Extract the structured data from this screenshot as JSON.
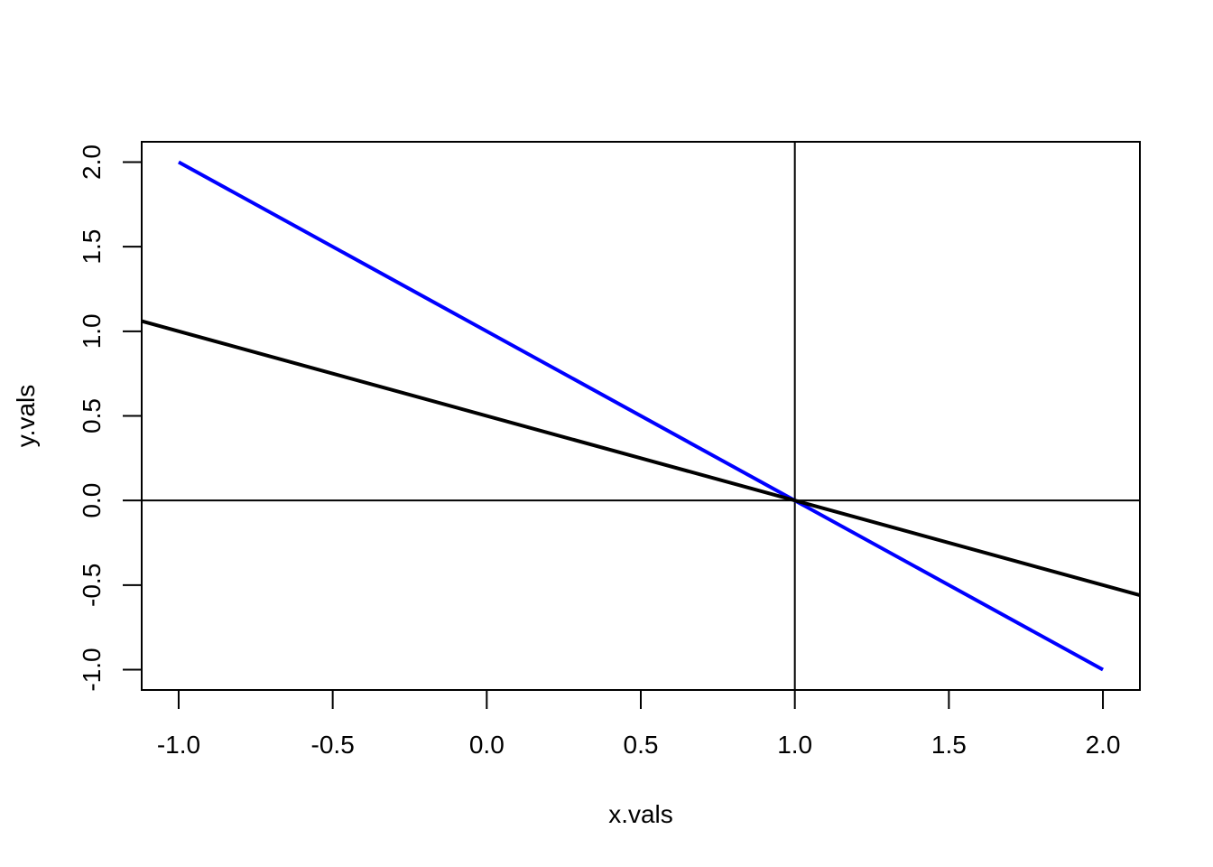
{
  "chart_data": {
    "type": "line",
    "xlabel": "x.vals",
    "ylabel": "y.vals",
    "xlim": [
      -1.12,
      2.12
    ],
    "ylim": [
      -1.12,
      2.12
    ],
    "x_ticks": [
      -1.0,
      -0.5,
      0.0,
      0.5,
      1.0,
      1.5,
      2.0
    ],
    "x_tick_labels": [
      "-1.0",
      "-0.5",
      "0.0",
      "0.5",
      "1.0",
      "1.5",
      "2.0"
    ],
    "y_ticks": [
      -1.0,
      -0.5,
      0.0,
      0.5,
      1.0,
      1.5,
      2.0
    ],
    "y_tick_labels": [
      "-1.0",
      "-0.5",
      "0.0",
      "0.5",
      "1.0",
      "1.5",
      "2.0"
    ],
    "grid": false,
    "series": [
      {
        "color": "#0000ff",
        "x": [
          -1.0,
          2.0
        ],
        "y": [
          2.0,
          -1.0
        ],
        "extends_to_frame": false
      },
      {
        "color": "#000000",
        "x": [
          -1.12,
          2.12
        ],
        "y": [
          1.06,
          -0.56
        ],
        "extends_to_frame": true
      }
    ],
    "reference_lines": [
      {
        "orientation": "vertical",
        "value": 1.0,
        "color": "#000000"
      },
      {
        "orientation": "horizontal",
        "value": 0.0,
        "color": "#000000"
      }
    ]
  }
}
